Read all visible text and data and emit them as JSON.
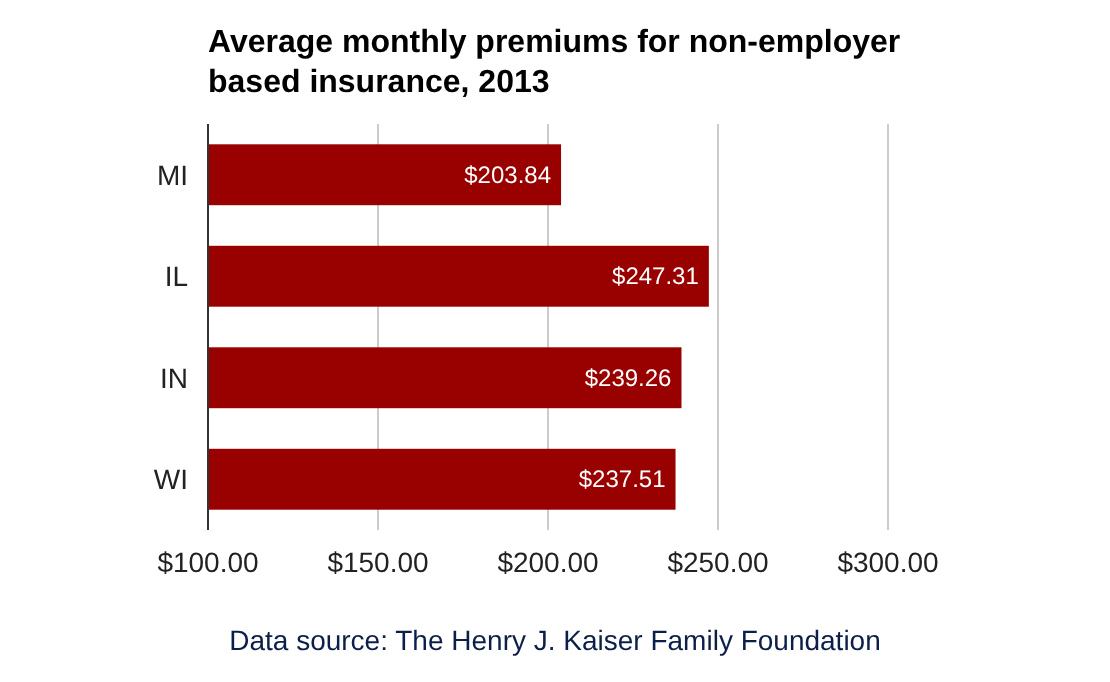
{
  "chart_data": {
    "type": "bar",
    "orientation": "horizontal",
    "title": "Average monthly premiums for non-employer based insurance, 2013",
    "categories": [
      "MI",
      "IL",
      "IN",
      "WI"
    ],
    "values": [
      203.84,
      247.31,
      239.26,
      237.51
    ],
    "value_labels": [
      "$203.84",
      "$247.31",
      "$239.26",
      "$237.51"
    ],
    "color": "#990000",
    "xlim": [
      100,
      300
    ],
    "xticks": [
      {
        "value": 100,
        "label": "$100.00"
      },
      {
        "value": 150,
        "label": "$150.00"
      },
      {
        "value": 200,
        "label": "$200.00"
      },
      {
        "value": 250,
        "label": "$250.00"
      },
      {
        "value": 300,
        "label": "$300.00"
      }
    ],
    "grid": "x",
    "annotations": [
      "Data source: The Henry J. Kaiser Family Foundation"
    ]
  }
}
